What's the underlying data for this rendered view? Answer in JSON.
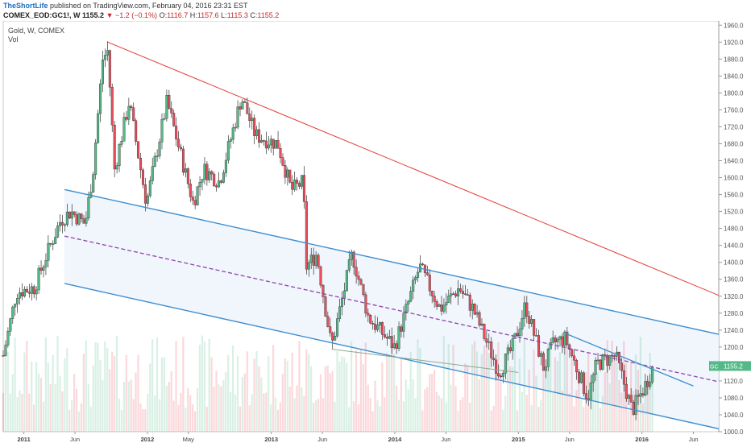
{
  "header": {
    "author": "TheShortLife",
    "published_text": "published on TradingView.com, February 04, 2016 23:31 EST",
    "symbol": "COMEX_EOD:GC1!, W",
    "last": "1155.2",
    "change_arrow": "▼",
    "change": "−1.2 (−0.1%)",
    "open_label": "O:",
    "open": "1116.7",
    "high_label": "H:",
    "high": "1157.6",
    "low_label": "L:",
    "low": "1115.3",
    "close_label": "C:",
    "close": "1155.2"
  },
  "legend": {
    "title": "Gold, W, COMEX",
    "volume": "Vol"
  },
  "colors": {
    "up": "#53b987",
    "down": "#eb4d5c",
    "channel": "#3e8ed0",
    "upper_trend": "#e53935",
    "midline": "#8e44ad",
    "support": "#8fa88f",
    "price_badge": "#53b987",
    "channel_fill": "#eef5fc"
  },
  "chart_data": {
    "type": "candlestick",
    "interval": "weekly",
    "symbol": "GC1!",
    "x_ticks": [
      "2011",
      "Jun",
      "2012",
      "May",
      "2013",
      "Jun",
      "2014",
      "Jun",
      "2015",
      "Jun",
      "2016",
      "Jun"
    ],
    "x_tick_dates": [
      "2011-01-01",
      "2011-06-01",
      "2012-01-01",
      "2012-05-01",
      "2013-01-01",
      "2013-06-01",
      "2014-01-01",
      "2014-06-01",
      "2015-01-01",
      "2015-06-01",
      "2016-01-01",
      "2016-06-01"
    ],
    "y_ticks": [
      1000,
      1040,
      1080,
      1120,
      1160,
      1200,
      1240,
      1280,
      1320,
      1360,
      1400,
      1440,
      1480,
      1520,
      1560,
      1600,
      1640,
      1680,
      1720,
      1760,
      1800,
      1840,
      1880,
      1920,
      1960
    ],
    "ylim": [
      1000,
      1970
    ],
    "xlim": [
      "2010-11-01",
      "2016-08-15"
    ],
    "price_badge": {
      "symbol": "GC1!",
      "value": 1155.2
    },
    "anchors": [
      [
        "2010-11-01",
        1180
      ],
      [
        "2010-12-10",
        1330
      ],
      [
        "2011-02-01",
        1340
      ],
      [
        "2011-03-10",
        1420
      ],
      [
        "2011-04-20",
        1500
      ],
      [
        "2011-05-20",
        1520
      ],
      [
        "2011-07-01",
        1490
      ],
      [
        "2011-07-25",
        1620
      ],
      [
        "2011-08-22",
        1880
      ],
      [
        "2011-09-06",
        1900
      ],
      [
        "2011-09-26",
        1620
      ],
      [
        "2011-11-08",
        1780
      ],
      [
        "2011-12-29",
        1540
      ],
      [
        "2012-02-28",
        1780
      ],
      [
        "2012-05-15",
        1540
      ],
      [
        "2012-06-15",
        1620
      ],
      [
        "2012-08-01",
        1590
      ],
      [
        "2012-10-05",
        1790
      ],
      [
        "2012-11-15",
        1700
      ],
      [
        "2012-12-15",
        1690
      ],
      [
        "2013-01-20",
        1680
      ],
      [
        "2013-03-01",
        1570
      ],
      [
        "2013-04-05",
        1590
      ],
      [
        "2013-04-15",
        1390
      ],
      [
        "2013-05-15",
        1420
      ],
      [
        "2013-06-28",
        1200
      ],
      [
        "2013-08-28",
        1420
      ],
      [
        "2013-10-15",
        1270
      ],
      [
        "2013-12-31",
        1200
      ],
      [
        "2014-03-15",
        1390
      ],
      [
        "2014-05-15",
        1290
      ],
      [
        "2014-07-10",
        1340
      ],
      [
        "2014-08-20",
        1290
      ],
      [
        "2014-11-05",
        1140
      ],
      [
        "2014-12-15",
        1200
      ],
      [
        "2015-01-22",
        1300
      ],
      [
        "2015-03-17",
        1150
      ],
      [
        "2015-04-15",
        1210
      ],
      [
        "2015-05-20",
        1220
      ],
      [
        "2015-07-25",
        1080
      ],
      [
        "2015-08-20",
        1160
      ],
      [
        "2015-10-15",
        1180
      ],
      [
        "2015-12-03",
        1050
      ],
      [
        "2016-01-05",
        1100
      ],
      [
        "2016-02-04",
        1155
      ]
    ],
    "trend_lines": [
      {
        "name": "upper-trend",
        "from": [
          "2011-09-06",
          1920
        ],
        "to": [
          "2016-08-15",
          1322
        ]
      },
      {
        "name": "channel-top",
        "from": [
          "2011-05-01",
          1572
        ],
        "to": [
          "2016-08-15",
          1230
        ]
      },
      {
        "name": "channel-mid",
        "from": [
          "2011-05-01",
          1462
        ],
        "to": [
          "2016-08-15",
          1118
        ]
      },
      {
        "name": "channel-bottom",
        "from": [
          "2011-05-01",
          1350
        ],
        "to": [
          "2016-08-15",
          1007
        ]
      },
      {
        "name": "inner-resistance",
        "from": [
          "2015-05-20",
          1232
        ],
        "to": [
          "2016-06-01",
          1108
        ]
      },
      {
        "name": "support-line",
        "from": [
          "2013-06-28",
          1195
        ],
        "to": [
          "2015-01-01",
          1140
        ]
      }
    ]
  }
}
